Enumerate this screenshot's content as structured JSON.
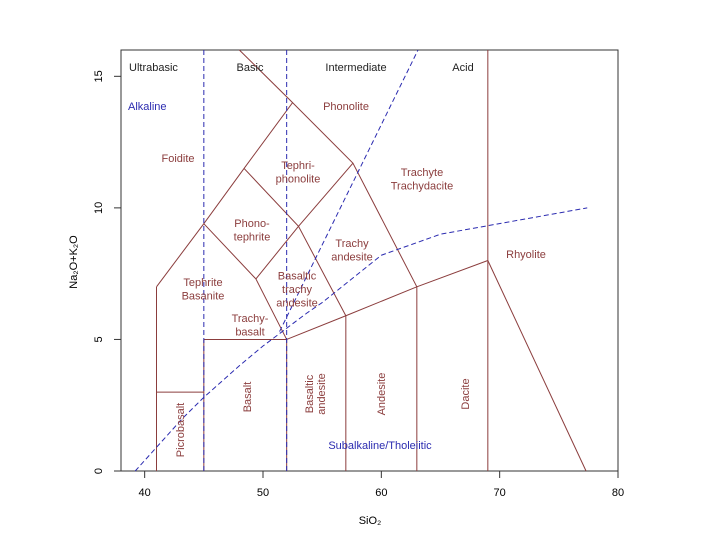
{
  "chart_data": {
    "type": "tas",
    "xlabel": "SiO₂",
    "ylabel": "Na₂O+K₂O",
    "xlim": [
      38,
      80
    ],
    "ylim": [
      0,
      16
    ],
    "xticks": [
      40,
      50,
      60,
      70,
      80
    ],
    "yticks": [
      0,
      5,
      10,
      15
    ],
    "headers": [
      "Ultrabasic",
      "Basic",
      "Intermediate",
      "Acid"
    ],
    "header_color": "#222222",
    "series_labels": [
      {
        "text": "Alkaline",
        "color": "#2b2bb0"
      },
      {
        "text": "Subalkaline/Tholeiitic",
        "color": "#2b2bb0"
      }
    ],
    "field_color": "#8b3d3d",
    "fields": [
      [
        "Phonolite"
      ],
      [
        "Foidite"
      ],
      [
        "Tephri-",
        "phonolite"
      ],
      [
        "Trachyte",
        "Trachydacite"
      ],
      [
        "Phono-",
        "tephrite"
      ],
      [
        "Trachy",
        "andesite"
      ],
      [
        "Rhyolite"
      ],
      [
        "Tephrite",
        "Basanite"
      ],
      [
        "Basaltic",
        "trachy",
        "andesite"
      ],
      [
        "Trachy-",
        "basalt"
      ]
    ],
    "vertical_fields": [
      [
        "Picrobasalt"
      ],
      [
        "Basalt"
      ],
      [
        "Basaltic",
        "andesite"
      ],
      [
        "Andesite"
      ],
      [
        "Dacite"
      ]
    ],
    "boundaries": [
      {
        "color": "#8b3d3d",
        "dashed": false,
        "x": [
          41,
          41
        ],
        "y": [
          0,
          7
        ]
      },
      {
        "color": "#8b3d3d",
        "dashed": false,
        "x": [
          41,
          45
        ],
        "y": [
          3,
          3
        ]
      },
      {
        "color": "#8b3d3d",
        "dashed": false,
        "x": [
          45,
          45
        ],
        "y": [
          0,
          5
        ]
      },
      {
        "color": "#8b3d3d",
        "dashed": false,
        "x": [
          45,
          52
        ],
        "y": [
          5,
          5
        ]
      },
      {
        "color": "#8b3d3d",
        "dashed": false,
        "x": [
          52,
          52
        ],
        "y": [
          0,
          5
        ]
      },
      {
        "color": "#8b3d3d",
        "dashed": false,
        "x": [
          57,
          57
        ],
        "y": [
          0,
          5.9
        ]
      },
      {
        "color": "#8b3d3d",
        "dashed": false,
        "x": [
          63,
          63
        ],
        "y": [
          0,
          7
        ]
      },
      {
        "color": "#8b3d3d",
        "dashed": false,
        "x": [
          69,
          69
        ],
        "y": [
          0,
          16
        ]
      },
      {
        "color": "#8b3d3d",
        "dashed": false,
        "x": [
          69,
          77.3
        ],
        "y": [
          8,
          0
        ]
      },
      {
        "color": "#8b3d3d",
        "dashed": false,
        "x": [
          41,
          45,
          48.4,
          52.5,
          57.6,
          63
        ],
        "y": [
          7,
          9.4,
          11.5,
          14,
          11.7,
          7
        ]
      },
      {
        "color": "#8b3d3d",
        "dashed": false,
        "x": [
          52,
          57,
          63,
          69
        ],
        "y": [
          5,
          5.9,
          7,
          8
        ]
      },
      {
        "color": "#8b3d3d",
        "dashed": false,
        "x": [
          45,
          49.4,
          52
        ],
        "y": [
          9.4,
          7.3,
          5
        ]
      },
      {
        "color": "#8b3d3d",
        "dashed": false,
        "x": [
          49.4,
          53,
          57.6
        ],
        "y": [
          7.3,
          9.3,
          11.7
        ]
      },
      {
        "color": "#8b3d3d",
        "dashed": false,
        "x": [
          48.4,
          53,
          57
        ],
        "y": [
          11.5,
          9.3,
          5.9
        ]
      },
      {
        "color": "#8b3d3d",
        "dashed": false,
        "x": [
          52.5,
          48
        ],
        "y": [
          14,
          16
        ]
      },
      {
        "color": "#2b2bb0",
        "dashed": true,
        "x": [
          45,
          45
        ],
        "y": [
          0,
          16
        ]
      },
      {
        "color": "#2b2bb0",
        "dashed": true,
        "x": [
          52,
          52
        ],
        "y": [
          0,
          16
        ]
      },
      {
        "color": "#2b2bb0",
        "dashed": true,
        "x": [
          39.2,
          40,
          43.2,
          45,
          48,
          50,
          53.7,
          55,
          60,
          65,
          77.4
        ],
        "y": [
          0,
          0.4,
          2,
          2.8,
          4,
          4.75,
          6,
          6.4,
          8.2,
          9,
          10
        ]
      },
      {
        "color": "#2b2bb0",
        "dashed": true,
        "x": [
          51.4,
          63.1
        ],
        "y": [
          5.3,
          16
        ]
      }
    ]
  }
}
